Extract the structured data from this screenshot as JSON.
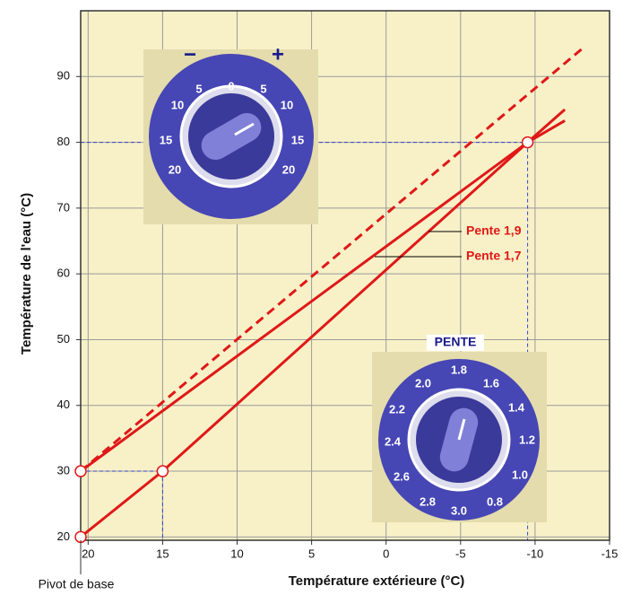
{
  "chart_data": {
    "type": "line",
    "y_label": "Température de l'eau (°C)",
    "x_label": "Température extérieure (°C)",
    "xlim": [
      20.5,
      -15
    ],
    "ylim": [
      19.5,
      100
    ],
    "xticks": [
      20,
      15,
      10,
      5,
      0,
      -5,
      -10,
      -15
    ],
    "yticks": [
      20,
      30,
      40,
      50,
      60,
      70,
      80,
      90
    ],
    "grid": true,
    "series": [
      {
        "name": "Pente 1,7",
        "color": "#e01818",
        "x": [
          20.5,
          -9.5,
          -12
        ],
        "values": [
          30,
          80,
          83.3
        ]
      },
      {
        "name": "Pente 1,9",
        "color": "#e01818",
        "x": [
          20.5,
          15,
          -9.5,
          -12
        ],
        "values": [
          20,
          30,
          80,
          85
        ]
      },
      {
        "color": "#e01818",
        "dashed": true,
        "x": [
          20.5,
          -13.3
        ],
        "values": [
          30,
          94.5
        ]
      }
    ],
    "points": {
      "color": "#e01818",
      "x": [
        20.5,
        20.5,
        15,
        -9.5
      ],
      "values": [
        30,
        20,
        30,
        80
      ]
    },
    "guide_color": "#3344cc",
    "pivot_label": "Pivot de base"
  },
  "temperature_dial": {
    "minus": "−",
    "plus": "+",
    "labels": [
      "5",
      "0",
      "5",
      "10",
      "10",
      "15",
      "15",
      "20",
      "20"
    ]
  },
  "slope_dial": {
    "title": "PENTE",
    "labels": [
      "1.8",
      "1.6",
      "1.4",
      "1.2",
      "1.0",
      "0.8",
      "3.0",
      "2.8",
      "2.6",
      "2.4",
      "2.2",
      "2.0"
    ]
  }
}
